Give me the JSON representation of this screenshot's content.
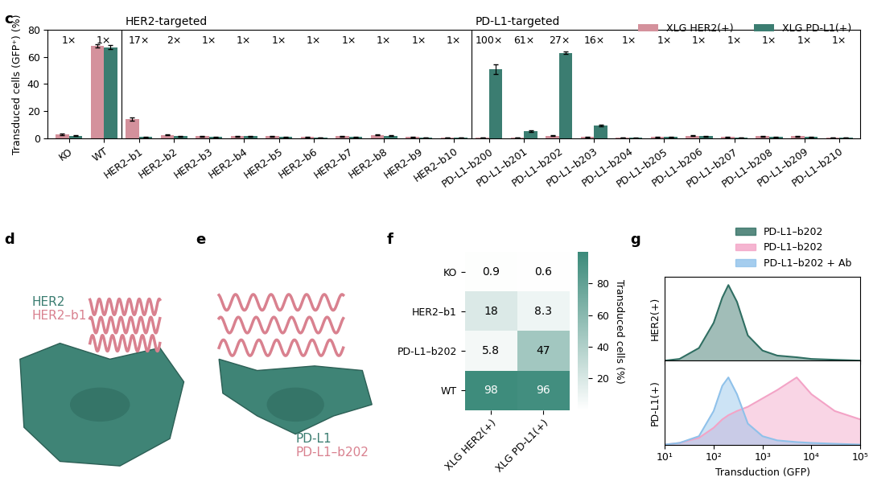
{
  "chart_data": [
    {
      "type": "bar",
      "panel_label": "c",
      "ylabel": "Transduced cells (GFP⁺) (%)",
      "categories": [
        "KO",
        "WT",
        "HER2–b1",
        "HER2–b2",
        "HER2–b3",
        "HER2–b4",
        "HER2–b5",
        "HER2–b6",
        "HER2–b7",
        "HER2–b8",
        "HER2–b9",
        "HER2–b10",
        "PD-L1–b200",
        "PD-L1–b201",
        "PD-L1–b202",
        "PD-L1–b203",
        "PD-L1–b204",
        "PD-L1–b205",
        "PD-L1–b206",
        "PD-L1–b207",
        "PD-L1–b208",
        "PD-L1–b209",
        "PD-L1–b210"
      ],
      "series": [
        {
          "name": "XLG HER2(+)",
          "color": "#d4919c",
          "values": [
            3,
            68,
            14,
            2.5,
            1.5,
            1.5,
            1.5,
            1,
            1.5,
            2.5,
            1,
            0.5,
            0.5,
            0.5,
            2,
            1,
            0.5,
            1,
            2,
            1,
            1.5,
            1.5,
            0.5
          ],
          "errors": [
            0.5,
            1,
            1.2,
            0.4,
            0.3,
            0.3,
            0.3,
            0.2,
            0.3,
            0.4,
            0.2,
            0.2,
            0.2,
            0.2,
            0.4,
            0.2,
            0.2,
            0.2,
            0.4,
            0.2,
            0.3,
            0.3,
            0.2
          ]
        },
        {
          "name": "XLG PD-L1(+)",
          "color": "#3b7d71",
          "values": [
            2,
            67,
            1,
            1.5,
            1,
            1.5,
            1,
            0.5,
            1,
            2,
            0.5,
            0.5,
            51,
            5.5,
            63,
            9.5,
            0.3,
            1,
            1.5,
            0.5,
            1,
            1,
            0.5
          ],
          "errors": [
            0.4,
            1.5,
            0.2,
            0.3,
            0.2,
            0.3,
            0.2,
            0.2,
            0.2,
            0.4,
            0.2,
            0.2,
            3.5,
            0.6,
            1,
            0.7,
            0.1,
            0.2,
            0.3,
            0.2,
            0.2,
            0.2,
            0.2
          ]
        }
      ],
      "fold_labels": [
        "1×",
        "1×",
        "17×",
        "2×",
        "1×",
        "1×",
        "1×",
        "1×",
        "1×",
        "1×",
        "1×",
        "1×",
        "100×",
        "61×",
        "27×",
        "16×",
        "1×",
        "1×",
        "1×",
        "1×",
        "1×",
        "1×",
        "1×"
      ],
      "groups": [
        {
          "label": "HER2-targeted",
          "first": "HER2–b1"
        },
        {
          "label": "PD-L1-targeted",
          "first": "PD-L1–b200"
        }
      ],
      "ylim": [
        0,
        80
      ],
      "yticks": [
        0,
        20,
        40,
        60,
        80
      ],
      "legend": "upper right"
    },
    {
      "type": "structure",
      "panel_label": "d",
      "target": "HER2",
      "binder": "HER2–b1"
    },
    {
      "type": "structure",
      "panel_label": "e",
      "target": "PD-L1",
      "binder": "PD-L1–b202"
    },
    {
      "type": "heatmap",
      "panel_label": "f",
      "rows": [
        "KO",
        "HER2–b1",
        "PD-L1–b202",
        "WT"
      ],
      "columns": [
        "XLG HER2(+)",
        "XLG PD-L1(+)"
      ],
      "cells": [
        [
          0.9,
          0.6
        ],
        [
          18,
          8.3
        ],
        [
          5.8,
          47
        ],
        [
          98,
          96
        ]
      ],
      "colorbar_label": "Transduced cells (%)",
      "colorbar_range": [
        0,
        100
      ],
      "colorbar_ticks": [
        20,
        40,
        60,
        80
      ]
    },
    {
      "type": "density",
      "panel_label": "g",
      "log": "x",
      "xlabel": "Transduction (GFP)",
      "xlim": [
        10,
        100000
      ],
      "xticks": [
        {
          "value": 10,
          "label": "10¹"
        },
        {
          "value": 100,
          "label": "10²"
        },
        {
          "value": 1000,
          "label": "10³"
        },
        {
          "value": 10000,
          "label": "10⁴"
        },
        {
          "value": 100000,
          "label": "10⁵"
        }
      ],
      "ylim": [
        0,
        1
      ],
      "tick_labels": "x",
      "legend": "upper right",
      "x": [
        10,
        20,
        50,
        100,
        150,
        200,
        300,
        500,
        1000,
        2000,
        5000,
        10000,
        30000,
        100000
      ],
      "rows": [
        {
          "name": "HER2(+)",
          "series": [
            {
              "name": "PD-L1–b202",
              "color": "#2f6e62",
              "values": [
                0,
                0.02,
                0.15,
                0.45,
                0.75,
                0.9,
                0.7,
                0.3,
                0.12,
                0.06,
                0.04,
                0.02,
                0.01,
                0
              ]
            }
          ]
        },
        {
          "name": "PD-L1(+)",
          "series": [
            {
              "name": "PD-L1–b202",
              "color": "#f3a3c6",
              "values": [
                0,
                0.02,
                0.08,
                0.2,
                0.3,
                0.35,
                0.4,
                0.45,
                0.55,
                0.65,
                0.8,
                0.6,
                0.4,
                0.3
              ]
            },
            {
              "name": "PD-L1–b202 + Ab",
              "color": "#8fc1ea",
              "values": [
                0,
                0.02,
                0.1,
                0.4,
                0.7,
                0.8,
                0.6,
                0.25,
                0.1,
                0.05,
                0.03,
                0.02,
                0.01,
                0
              ]
            }
          ]
        }
      ]
    }
  ]
}
